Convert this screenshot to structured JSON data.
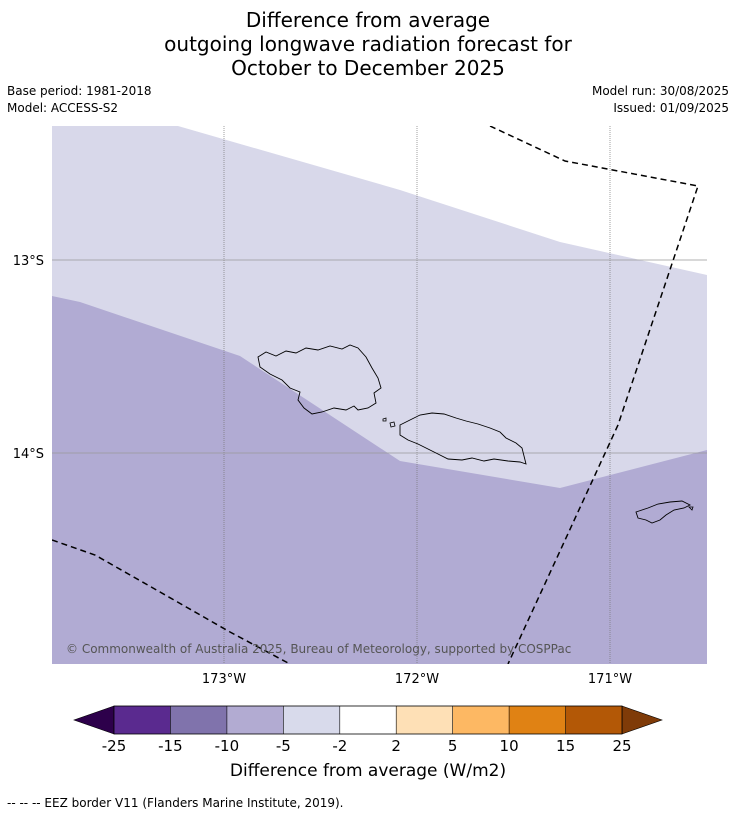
{
  "title_lines": [
    "Difference from average",
    "outgoing longwave radiation forecast for",
    "October to December 2025"
  ],
  "meta": {
    "base_period": "Base period: 1981-2018",
    "model": "Model: ACCESS-S2",
    "model_run": "Model run: 30/08/2025",
    "issued": "Issued: 01/09/2025"
  },
  "map": {
    "lon_ticks": [
      "173°W",
      "172°W",
      "171°W"
    ],
    "lat_ticks": [
      "13°S",
      "14°S"
    ],
    "credit": "© Commonwealth of Australia 2025, Bureau of Meteorology, supported by COSPPac",
    "colors": {
      "region_-5_-2": "#d8d8ea",
      "region_-10_-5": "#b1abd3",
      "eez_line": "#000000"
    }
  },
  "colorbar": {
    "ticks": [
      "-25",
      "-15",
      "-10",
      "-5",
      "-2",
      "2",
      "5",
      "10",
      "15",
      "25"
    ],
    "colors": [
      "#2d004b",
      "#5a2a8f",
      "#8073ac",
      "#b2abd2",
      "#d8daeb",
      "#ffffff",
      "#fee0b6",
      "#fdb863",
      "#e08214",
      "#b35806",
      "#7f3b08"
    ],
    "label": "Difference from average (W/m2)"
  },
  "legend": {
    "eez": "--  --  -- EEZ border V11 (Flanders Marine Institute, 2019)."
  }
}
